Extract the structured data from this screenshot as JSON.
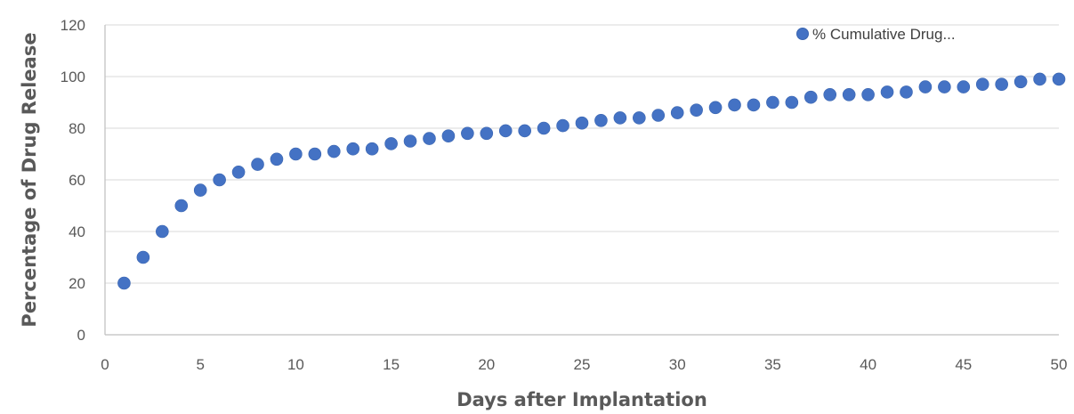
{
  "chart_data": {
    "type": "scatter",
    "xlabel": "Days after Implantation",
    "ylabel": "Percentage of Drug Release",
    "xlim": [
      0,
      50
    ],
    "ylim": [
      0,
      120
    ],
    "x_ticks": [
      "0",
      "5",
      "10",
      "15",
      "20",
      "25",
      "30",
      "35",
      "40",
      "45",
      "50"
    ],
    "y_ticks": [
      "0",
      "20",
      "40",
      "60",
      "80",
      "100",
      "120"
    ],
    "grid": "horizontal",
    "legend_position": "top-right",
    "series": [
      {
        "name": "% Cumulative Drug...",
        "color": "#4472C4",
        "x": [
          1,
          2,
          3,
          4,
          5,
          6,
          7,
          8,
          9,
          10,
          11,
          12,
          13,
          14,
          15,
          16,
          17,
          18,
          19,
          20,
          21,
          22,
          23,
          24,
          25,
          26,
          27,
          28,
          29,
          30,
          31,
          32,
          33,
          34,
          35,
          36,
          37,
          38,
          39,
          40,
          41,
          42,
          43,
          44,
          45,
          46,
          47,
          48,
          49,
          50
        ],
        "y": [
          20,
          30,
          40,
          50,
          56,
          60,
          63,
          66,
          68,
          70,
          70,
          71,
          72,
          72,
          74,
          75,
          76,
          77,
          78,
          78,
          79,
          79,
          80,
          81,
          82,
          83,
          84,
          84,
          85,
          86,
          87,
          88,
          89,
          89,
          90,
          90,
          92,
          93,
          93,
          93,
          94,
          94,
          96,
          96,
          96,
          97,
          97,
          98,
          99,
          99
        ]
      }
    ]
  }
}
